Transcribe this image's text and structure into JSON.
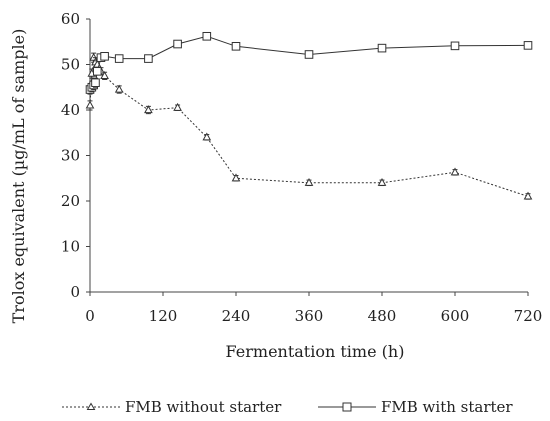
{
  "chart_data": {
    "type": "line",
    "xlabel": "Fermentation time (h)",
    "ylabel": "Trolox equivalent (µg/mL of sample)",
    "xlim": [
      0,
      720
    ],
    "ylim": [
      0,
      60
    ],
    "xticks": [
      0,
      120,
      240,
      360,
      480,
      600,
      720
    ],
    "yticks": [
      0,
      10,
      20,
      30,
      40,
      50,
      60
    ],
    "grid": false,
    "legend_position": "bottom",
    "series": [
      {
        "name": "FMB without starter",
        "marker": "triangle",
        "line_style": "dotted",
        "x": [
          0,
          3,
          6,
          9,
          12,
          18,
          24,
          48,
          96,
          144,
          192,
          240,
          360,
          480,
          600,
          720
        ],
        "y": [
          41,
          48,
          51.5,
          50.5,
          50,
          48.5,
          47.5,
          44.5,
          40,
          40.5,
          34,
          25,
          24,
          24,
          26.3,
          21
        ],
        "err": [
          1,
          1,
          1,
          1,
          0.8,
          0.8,
          0.8,
          0.8,
          0.8,
          0.6,
          0.6,
          0.6,
          0.6,
          0.6,
          0.6,
          0.6
        ]
      },
      {
        "name": "FMB with starter",
        "marker": "square",
        "line_style": "solid",
        "x": [
          0,
          3,
          6,
          9,
          12,
          18,
          24,
          48,
          96,
          144,
          192,
          240,
          360,
          480,
          600,
          720
        ],
        "y": [
          44.5,
          45,
          45.5,
          46,
          48.5,
          51.5,
          51.8,
          51.3,
          51.3,
          54.5,
          56.2,
          54,
          52.2,
          53.6,
          54.1,
          54.2
        ],
        "err": [
          1,
          1,
          1,
          1,
          0.8,
          0.6,
          0.6,
          0.5,
          0.5,
          0.5,
          0.5,
          0.5,
          0.5,
          0.5,
          0.5,
          0.5
        ]
      }
    ]
  }
}
